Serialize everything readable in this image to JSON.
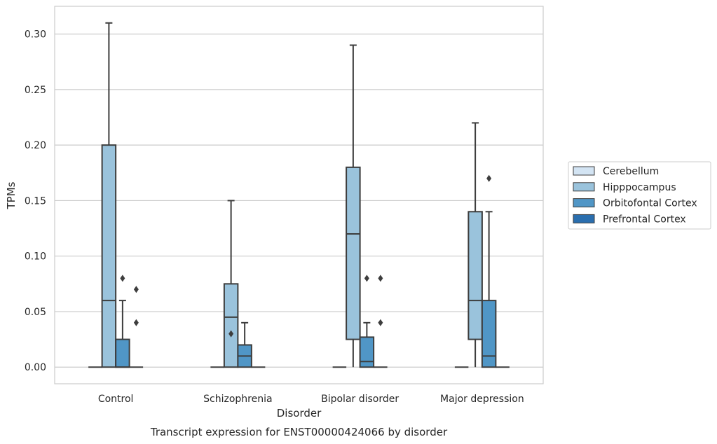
{
  "chart_data": {
    "type": "box",
    "caption": "Transcript expression for ENST00000424066 by disorder",
    "xlabel": "Disorder",
    "ylabel": "TPMs",
    "ylim": [
      -0.015,
      0.325
    ],
    "yticks": [
      "0.00",
      "0.05",
      "0.10",
      "0.15",
      "0.20",
      "0.25",
      "0.30"
    ],
    "ytick_values": [
      0,
      0.05,
      0.1,
      0.15,
      0.2,
      0.25,
      0.3
    ],
    "grid": "horizontal",
    "legend_position": "right",
    "categories": [
      "Control",
      "Schizophrenia",
      "Bipolar disorder",
      "Major depression"
    ],
    "series": [
      {
        "name": "Cerebellum",
        "color": "#d3e4f3",
        "boxes": [
          {
            "q1": 0,
            "median": 0,
            "q3": 0,
            "whislo": 0,
            "whishi": 0,
            "fliers": []
          },
          {
            "q1": 0,
            "median": 0,
            "q3": 0,
            "whislo": 0,
            "whishi": 0,
            "fliers": []
          },
          {
            "q1": 0,
            "median": 0,
            "q3": 0,
            "whislo": 0,
            "whishi": 0,
            "fliers": []
          },
          {
            "q1": 0,
            "median": 0,
            "q3": 0,
            "whislo": 0,
            "whishi": 0,
            "fliers": []
          }
        ]
      },
      {
        "name": "Hipppocampus",
        "color": "#9ac3dc",
        "boxes": [
          {
            "q1": 0,
            "median": 0.06,
            "q3": 0.2,
            "whislo": 0,
            "whishi": 0.31,
            "fliers": []
          },
          {
            "q1": 0,
            "median": 0.045,
            "q3": 0.075,
            "whislo": 0,
            "whishi": 0.15,
            "fliers": [
              0.03
            ]
          },
          {
            "q1": 0.025,
            "median": 0.12,
            "q3": 0.18,
            "whislo": 0,
            "whishi": 0.29,
            "fliers": []
          },
          {
            "q1": 0.025,
            "median": 0.06,
            "q3": 0.14,
            "whislo": 0,
            "whishi": 0.22,
            "fliers": []
          }
        ]
      },
      {
        "name": "Orbitofontal Cortex",
        "color": "#5096c6",
        "boxes": [
          {
            "q1": 0,
            "median": 0,
            "q3": 0.025,
            "whislo": 0,
            "whishi": 0.06,
            "fliers": [
              0.08
            ]
          },
          {
            "q1": 0,
            "median": 0.01,
            "q3": 0.02,
            "whislo": 0,
            "whishi": 0.04,
            "fliers": []
          },
          {
            "q1": 0,
            "median": 0.005,
            "q3": 0.027,
            "whislo": 0,
            "whishi": 0.04,
            "fliers": [
              0.08
            ]
          },
          {
            "q1": 0,
            "median": 0.01,
            "q3": 0.06,
            "whislo": 0,
            "whishi": 0.14,
            "fliers": [
              0.17
            ]
          }
        ]
      },
      {
        "name": "Prefrontal Cortex",
        "color": "#2a6eae",
        "boxes": [
          {
            "q1": 0,
            "median": 0,
            "q3": 0,
            "whislo": 0,
            "whishi": 0,
            "fliers": [
              0.07,
              0.04
            ]
          },
          {
            "q1": 0,
            "median": 0,
            "q3": 0,
            "whislo": 0,
            "whishi": 0,
            "fliers": []
          },
          {
            "q1": 0,
            "median": 0,
            "q3": 0,
            "whislo": 0,
            "whishi": 0,
            "fliers": [
              0.08,
              0.04
            ]
          },
          {
            "q1": 0,
            "median": 0,
            "q3": 0,
            "whislo": 0,
            "whishi": 0,
            "fliers": []
          }
        ]
      }
    ]
  }
}
